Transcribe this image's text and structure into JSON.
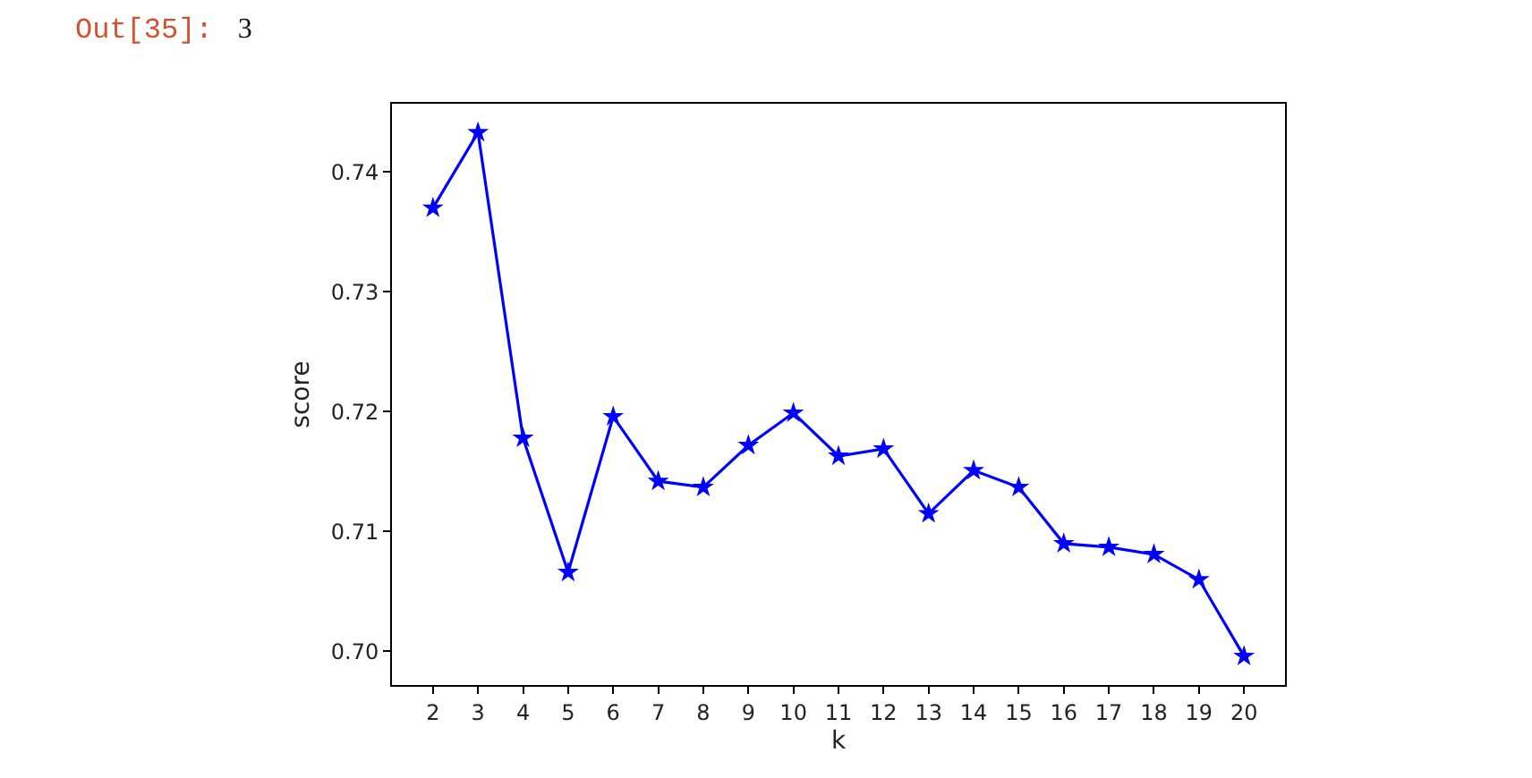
{
  "chart_data": {
    "type": "line",
    "xlabel": "k",
    "ylabel": "score",
    "x": [
      2,
      3,
      4,
      5,
      6,
      7,
      8,
      9,
      10,
      11,
      12,
      13,
      14,
      15,
      16,
      17,
      18,
      19,
      20
    ],
    "series": [
      {
        "color": "#0000ff",
        "values": [
          0.737,
          0.7433,
          0.7178,
          0.7066,
          0.7196,
          0.7142,
          0.7137,
          0.7172,
          0.7199,
          0.7163,
          0.7169,
          0.7115,
          0.7151,
          0.7137,
          0.709,
          0.7087,
          0.7081,
          0.706,
          0.6996
        ]
      }
    ],
    "xlim": [
      1.09,
      20.91
    ],
    "xticks": [
      2,
      3,
      4,
      5,
      6,
      7,
      8,
      9,
      10,
      11,
      12,
      13,
      14,
      15,
      16,
      17,
      18,
      19,
      20
    ],
    "ylim": [
      0.6972,
      0.7457
    ],
    "yticks": [
      {
        "value": 0.7,
        "label": "0.70"
      },
      0.71,
      0.72,
      0.73,
      0.74
    ],
    "marker": "star",
    "line_style": "solid",
    "annotations": [
      "Out[35]:",
      "3"
    ]
  }
}
